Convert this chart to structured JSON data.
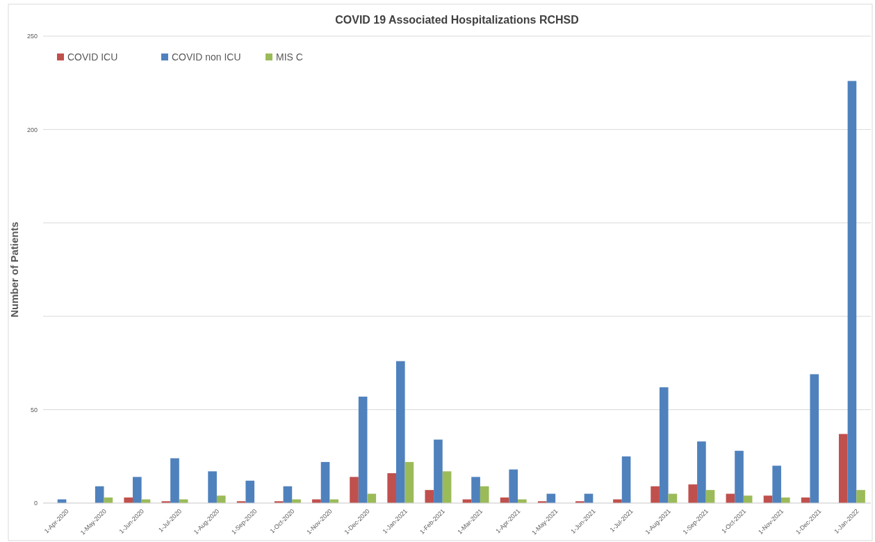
{
  "chart_data": {
    "type": "bar",
    "title": "COVID 19 Associated Hospitalizations RCHSD",
    "ylabel": "Number of Patients",
    "categories": [
      "1-Apr-2020",
      "1-May-2020",
      "1-Jun-2020",
      "1-Jul-2020",
      "1-Aug-2020",
      "1-Sep-2020",
      "1-Oct-2020",
      "1-Nov-2020",
      "1-Dec-2020",
      "1-Jan-2021",
      "1-Feb-2021",
      "1-Mar-2021",
      "1-Apr-2021",
      "1-May-2021",
      "1-Jun-2021",
      "1-Jul-2021",
      "1-Aug-2021",
      "1-Sep-2021",
      "1-Oct-2021",
      "1-Nov-2021",
      "1-Dec-2021",
      "1-Jan-2022"
    ],
    "series": [
      {
        "name": "COVID ICU",
        "color": "#c0504d",
        "values": [
          0,
          0,
          3,
          1,
          0,
          1,
          1,
          2,
          14,
          16,
          7,
          2,
          3,
          1,
          1,
          2,
          9,
          10,
          5,
          4,
          3,
          37
        ]
      },
      {
        "name": "COVID non ICU",
        "color": "#4f81bd",
        "values": [
          2,
          9,
          14,
          24,
          17,
          12,
          9,
          22,
          57,
          76,
          34,
          14,
          18,
          5,
          5,
          25,
          62,
          33,
          28,
          20,
          69,
          226
        ]
      },
      {
        "name": "MIS C",
        "color": "#9bbb59",
        "values": [
          0,
          3,
          2,
          2,
          4,
          0,
          2,
          2,
          5,
          22,
          17,
          9,
          2,
          0,
          0,
          0,
          5,
          7,
          4,
          3,
          0,
          7
        ]
      }
    ],
    "ylim": [
      0,
      250
    ],
    "yticks": [
      0,
      50,
      {
        "value": 100,
        "label": null
      },
      {
        "value": 150,
        "label": null
      },
      200,
      250
    ],
    "grid": "y",
    "legend": "top left"
  }
}
